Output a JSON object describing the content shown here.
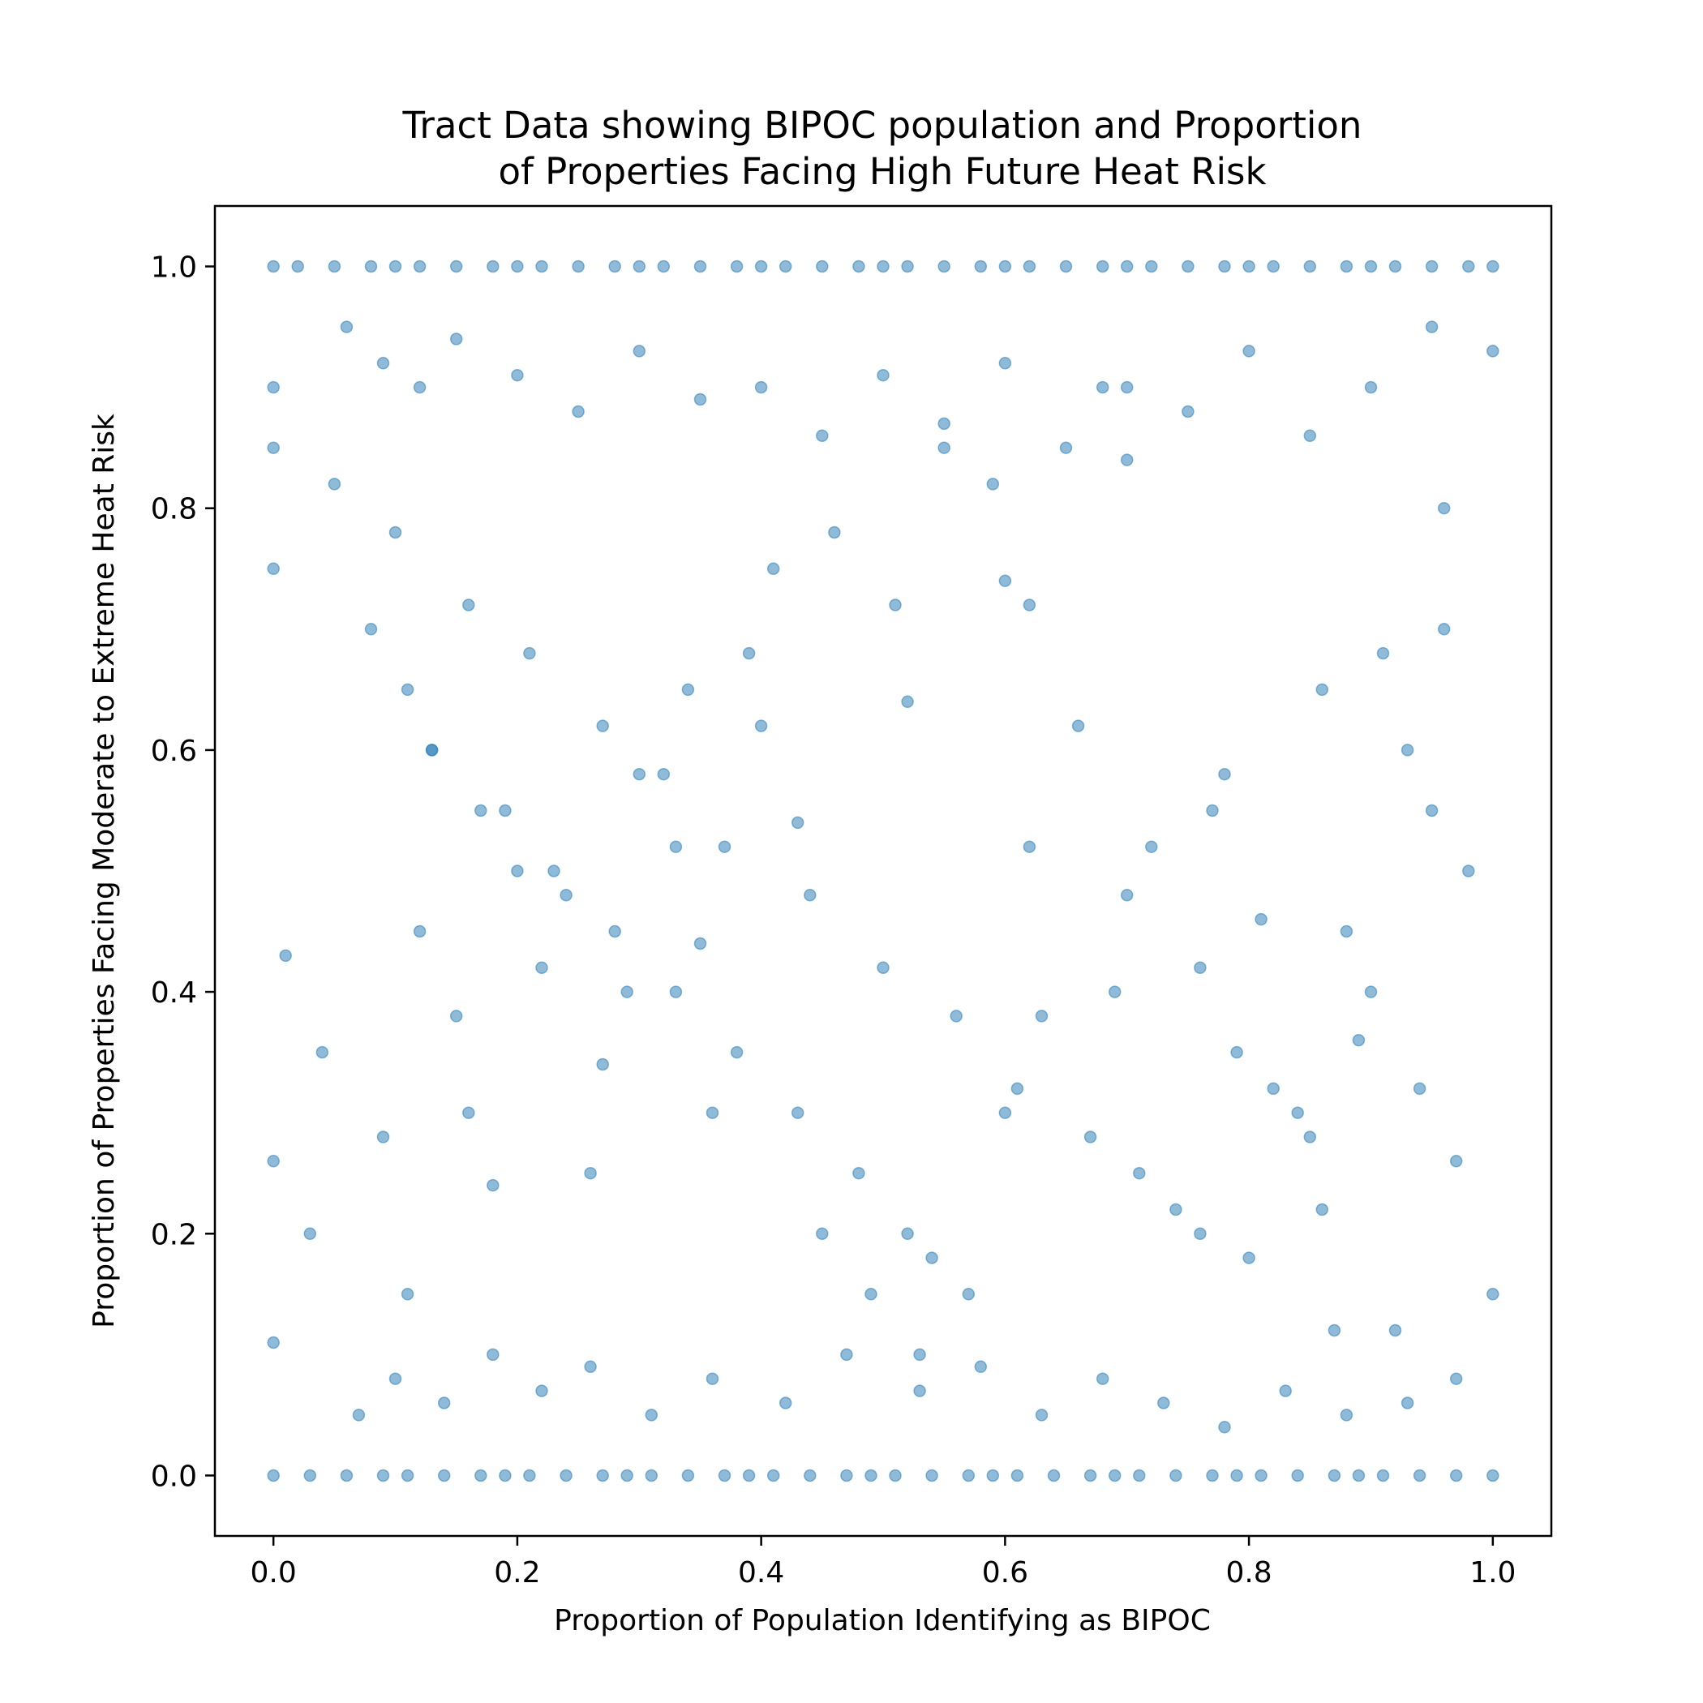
{
  "chart_data": {
    "type": "scatter",
    "title_lines": [
      "Tract Data showing BIPOC population and Proportion",
      "of Properties Facing High Future Heat Risk"
    ],
    "xlabel": "Proportion of Population Identifying as BIPOC",
    "ylabel": "Proportion of Properties Facing Moderate to Extreme Heat Risk",
    "xlim": [
      -0.048,
      1.048
    ],
    "ylim": [
      -0.05,
      1.05
    ],
    "x_ticks": [
      0.0,
      0.2,
      0.4,
      0.6,
      0.8,
      1.0
    ],
    "x_tick_labels": [
      "0.0",
      "0.2",
      "0.4",
      "0.6",
      "0.8",
      "1.0"
    ],
    "y_ticks": [
      0.0,
      0.2,
      0.4,
      0.6,
      0.8,
      1.0
    ],
    "y_tick_labels": [
      "0.0",
      "0.2",
      "0.4",
      "0.6",
      "0.8",
      "1.0"
    ],
    "grid": false,
    "marker_color": "#1f77b4",
    "marker_alpha": 0.5,
    "series": [
      {
        "x": [
          0.0,
          0.02,
          0.05,
          0.08,
          0.1,
          0.12,
          0.15,
          0.18,
          0.2,
          0.22,
          0.25,
          0.28,
          0.3,
          0.32,
          0.35,
          0.38,
          0.4,
          0.42,
          0.45,
          0.48,
          0.5,
          0.52,
          0.55,
          0.58,
          0.6,
          0.62,
          0.65,
          0.68,
          0.7,
          0.72,
          0.75,
          0.78,
          0.8,
          0.82,
          0.85,
          0.88,
          0.9,
          0.92,
          0.95,
          0.98,
          1.0,
          0.0,
          0.03,
          0.06,
          0.09,
          0.11,
          0.14,
          0.17,
          0.19,
          0.21,
          0.24,
          0.27,
          0.29,
          0.31,
          0.34,
          0.37,
          0.39,
          0.41,
          0.44,
          0.47,
          0.49,
          0.51,
          0.54,
          0.57,
          0.59,
          0.61,
          0.64,
          0.67,
          0.69,
          0.71,
          0.74,
          0.77,
          0.79,
          0.81,
          0.84,
          0.87,
          0.89,
          0.91,
          0.94,
          0.97,
          1.0,
          0.0,
          0.01,
          0.0,
          0.0,
          0.0,
          0.0,
          1.0,
          1.0,
          0.06,
          0.09,
          0.12,
          0.15,
          0.2,
          0.25,
          0.3,
          0.35,
          0.4,
          0.45,
          0.5,
          0.55,
          0.6,
          0.65,
          0.7,
          0.75,
          0.8,
          0.85,
          0.9,
          0.95,
          0.07,
          0.1,
          0.14,
          0.18,
          0.22,
          0.26,
          0.31,
          0.36,
          0.42,
          0.47,
          0.53,
          0.58,
          0.63,
          0.68,
          0.73,
          0.78,
          0.83,
          0.88,
          0.93,
          0.97,
          0.08,
          0.11,
          0.13,
          0.17,
          0.23,
          0.28,
          0.33,
          0.38,
          0.43,
          0.48,
          0.52,
          0.57,
          0.62,
          0.66,
          0.72,
          0.76,
          0.82,
          0.86,
          0.92,
          0.96,
          0.05,
          0.1,
          0.16,
          0.21,
          0.27,
          0.32,
          0.37,
          0.44,
          0.5,
          0.56,
          0.61,
          0.67,
          0.74,
          0.8,
          0.87,
          0.93,
          0.04,
          0.12,
          0.19,
          0.26,
          0.34,
          0.41,
          0.49,
          0.55,
          0.63,
          0.7,
          0.78,
          0.85,
          0.91,
          0.98,
          0.09,
          0.15,
          0.24,
          0.3,
          0.39,
          0.46,
          0.54,
          0.6,
          0.69,
          0.76,
          0.84,
          0.9,
          0.96,
          0.13,
          0.2,
          0.29,
          0.36,
          0.45,
          0.53,
          0.62,
          0.71,
          0.79,
          0.88,
          0.95,
          0.03,
          0.16,
          0.22,
          0.33,
          0.4,
          0.51,
          0.59,
          0.68,
          0.77,
          0.86,
          0.94,
          0.11,
          0.18,
          0.27,
          0.35,
          0.43,
          0.52,
          0.6,
          0.7,
          0.81,
          0.89,
          0.97
        ],
        "y": [
          1.0,
          1.0,
          1.0,
          1.0,
          1.0,
          1.0,
          1.0,
          1.0,
          1.0,
          1.0,
          1.0,
          1.0,
          1.0,
          1.0,
          1.0,
          1.0,
          1.0,
          1.0,
          1.0,
          1.0,
          1.0,
          1.0,
          1.0,
          1.0,
          1.0,
          1.0,
          1.0,
          1.0,
          1.0,
          1.0,
          1.0,
          1.0,
          1.0,
          1.0,
          1.0,
          1.0,
          1.0,
          1.0,
          1.0,
          1.0,
          1.0,
          0.0,
          0.0,
          0.0,
          0.0,
          0.0,
          0.0,
          0.0,
          0.0,
          0.0,
          0.0,
          0.0,
          0.0,
          0.0,
          0.0,
          0.0,
          0.0,
          0.0,
          0.0,
          0.0,
          0.0,
          0.0,
          0.0,
          0.0,
          0.0,
          0.0,
          0.0,
          0.0,
          0.0,
          0.0,
          0.0,
          0.0,
          0.0,
          0.0,
          0.0,
          0.0,
          0.0,
          0.0,
          0.0,
          0.0,
          0.0,
          0.75,
          0.43,
          0.26,
          0.11,
          0.9,
          0.85,
          0.93,
          0.15,
          0.95,
          0.92,
          0.9,
          0.94,
          0.91,
          0.88,
          0.93,
          0.89,
          0.9,
          0.86,
          0.91,
          0.87,
          0.92,
          0.85,
          0.9,
          0.88,
          0.93,
          0.86,
          0.9,
          0.95,
          0.05,
          0.08,
          0.06,
          0.1,
          0.07,
          0.09,
          0.05,
          0.08,
          0.06,
          0.1,
          0.07,
          0.09,
          0.05,
          0.08,
          0.06,
          0.04,
          0.07,
          0.05,
          0.06,
          0.08,
          0.7,
          0.65,
          0.6,
          0.55,
          0.5,
          0.45,
          0.4,
          0.35,
          0.3,
          0.25,
          0.2,
          0.15,
          0.72,
          0.62,
          0.52,
          0.42,
          0.32,
          0.22,
          0.12,
          0.8,
          0.82,
          0.78,
          0.72,
          0.68,
          0.62,
          0.58,
          0.52,
          0.48,
          0.42,
          0.38,
          0.32,
          0.28,
          0.22,
          0.18,
          0.12,
          0.6,
          0.35,
          0.45,
          0.55,
          0.25,
          0.65,
          0.75,
          0.15,
          0.85,
          0.38,
          0.48,
          0.58,
          0.28,
          0.68,
          0.5,
          0.28,
          0.38,
          0.48,
          0.58,
          0.68,
          0.78,
          0.18,
          0.3,
          0.4,
          0.2,
          0.3,
          0.4,
          0.7,
          0.6,
          0.5,
          0.4,
          0.3,
          0.2,
          0.1,
          0.52,
          0.25,
          0.35,
          0.45,
          0.55,
          0.2,
          0.3,
          0.42,
          0.52,
          0.62,
          0.72,
          0.82,
          0.9,
          0.55,
          0.65,
          0.32,
          0.15,
          0.24,
          0.34,
          0.44,
          0.54,
          0.64,
          0.74,
          0.84,
          0.46,
          0.36,
          0.26
        ]
      }
    ]
  }
}
